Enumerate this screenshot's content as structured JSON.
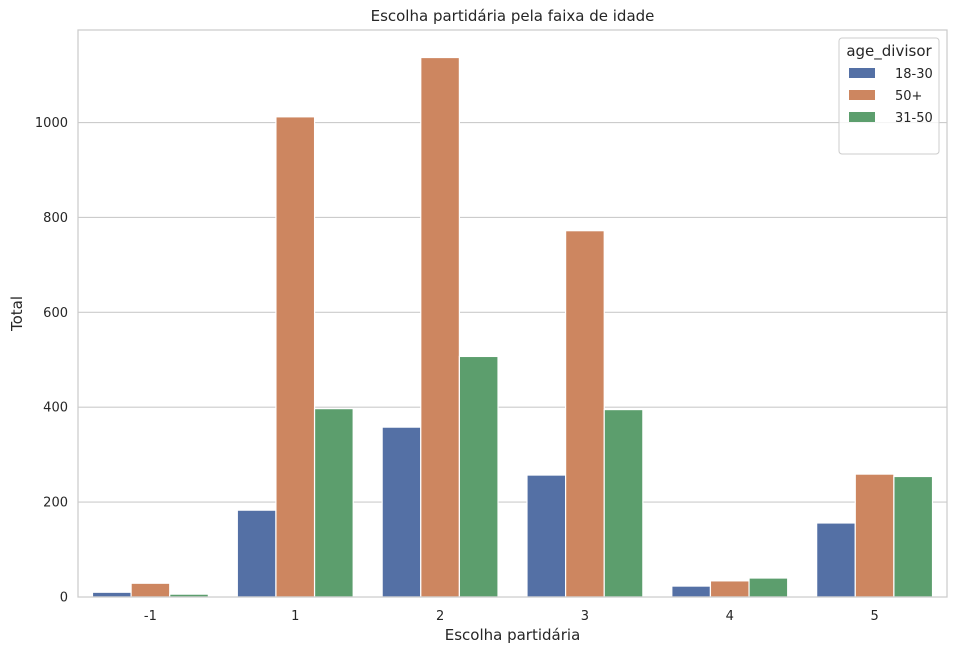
{
  "chart_data": {
    "type": "bar",
    "title": "Escolha partidária pela faixa de idade",
    "xlabel": "Escolha partidária",
    "ylabel": "Total",
    "categories": [
      "-1",
      "1",
      "2",
      "3",
      "4",
      "5"
    ],
    "yticks": [
      0,
      200,
      400,
      600,
      800,
      1000
    ],
    "ylim": [
      0,
      1195
    ],
    "grid": true,
    "legend": {
      "title": "age_divisor",
      "placement": "top-right"
    },
    "series": [
      {
        "name": "18-30",
        "color": "#5470a5",
        "values": [
          10,
          183,
          358,
          257,
          23,
          156
        ]
      },
      {
        "name": "50+",
        "color": "#cd8660",
        "values": [
          29,
          1012,
          1137,
          772,
          34,
          259
        ]
      },
      {
        "name": "31-50",
        "color": "#5c9e6d",
        "values": [
          6,
          397,
          507,
          395,
          40,
          254
        ]
      }
    ]
  }
}
